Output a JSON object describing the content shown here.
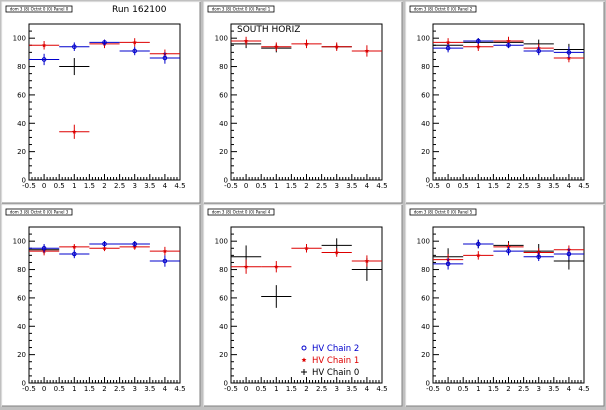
{
  "colors": {
    "HV Chain 0": "#000000",
    "HV Chain 1": "#dd0000",
    "HV Chain 2": "#0000cc"
  },
  "chart_data": [
    {
      "type": "scatter",
      "pad_title": "dom 3 (8) Octnt 0 (0) Panel 0",
      "annotation": "Run 162100",
      "xlim": [
        -0.5,
        4.5
      ],
      "ylim": [
        0,
        110
      ],
      "xticks": [
        "-0.5",
        "0",
        "0.5",
        "1",
        "1.5",
        "2",
        "2.5",
        "3",
        "3.5",
        "4",
        "4.5"
      ],
      "yticks": [
        "0",
        "20",
        "40",
        "60",
        "80",
        "100"
      ],
      "series": [
        {
          "name": "HV Chain 0",
          "x": [
            1
          ],
          "y": [
            80
          ],
          "yerr": [
            6
          ],
          "xerr": 0.5
        },
        {
          "name": "HV Chain 1",
          "x": [
            0,
            1,
            2,
            3,
            4
          ],
          "y": [
            95,
            34,
            96,
            97,
            89
          ],
          "yerr": [
            3,
            5,
            3,
            3,
            3
          ],
          "xerr": 0.5
        },
        {
          "name": "HV Chain 2",
          "x": [
            0,
            1,
            2,
            3,
            4
          ],
          "y": [
            85,
            94,
            97,
            91,
            86
          ],
          "yerr": [
            4,
            3,
            2,
            3,
            4
          ],
          "xerr": 0.5
        }
      ]
    },
    {
      "type": "scatter",
      "pad_title": "dom 3 (8) Octnt 0 (0) Panel 1",
      "annotation": "SOUTH HORIZ",
      "xlim": [
        -0.5,
        4.5
      ],
      "ylim": [
        0,
        110
      ],
      "xticks": [
        "-0.5",
        "0",
        "0.5",
        "1",
        "1.5",
        "2",
        "2.5",
        "3",
        "3.5",
        "4",
        "4.5"
      ],
      "yticks": [
        "0",
        "20",
        "40",
        "60",
        "80",
        "100"
      ],
      "series": [
        {
          "name": "HV Chain 0",
          "x": [
            0,
            1,
            3
          ],
          "y": [
            96,
            93,
            94
          ],
          "yerr": [
            3,
            3,
            2
          ],
          "xerr": 0.5
        },
        {
          "name": "HV Chain 1",
          "x": [
            0,
            1,
            2,
            3,
            4
          ],
          "y": [
            98,
            94,
            96,
            94,
            91
          ],
          "yerr": [
            3,
            3,
            3,
            3,
            4
          ],
          "xerr": 0.5
        }
      ]
    },
    {
      "type": "scatter",
      "pad_title": "dom 3 (8) Octnt 0 (0) Panel 2",
      "annotation": "",
      "xlim": [
        -0.5,
        4.5
      ],
      "ylim": [
        0,
        110
      ],
      "xticks": [
        "-0.5",
        "0",
        "0.5",
        "1",
        "1.5",
        "2",
        "2.5",
        "3",
        "3.5",
        "4",
        "4.5"
      ],
      "yticks": [
        "0",
        "20",
        "40",
        "60",
        "80",
        "100"
      ],
      "series": [
        {
          "name": "HV Chain 0",
          "x": [
            0,
            1,
            2,
            3,
            4
          ],
          "y": [
            95,
            97,
            97,
            96,
            92
          ],
          "yerr": [
            3,
            3,
            3,
            3,
            4
          ],
          "xerr": 0.5
        },
        {
          "name": "HV Chain 1",
          "x": [
            0,
            1,
            2,
            3,
            4
          ],
          "y": [
            97,
            94,
            98,
            93,
            86
          ],
          "yerr": [
            3,
            3,
            3,
            3,
            3
          ],
          "xerr": 0.5
        },
        {
          "name": "HV Chain 2",
          "x": [
            0,
            1,
            2,
            3,
            4
          ],
          "y": [
            93,
            98,
            95,
            91,
            90
          ],
          "yerr": [
            3,
            2,
            2,
            3,
            4
          ],
          "xerr": 0.5
        }
      ]
    },
    {
      "type": "scatter",
      "pad_title": "dom 3 (8) Octnt 0 (0) Panel 3",
      "annotation": "",
      "xlim": [
        -0.5,
        4.5
      ],
      "ylim": [
        0,
        110
      ],
      "xticks": [
        "-0.5",
        "0",
        "0.5",
        "1",
        "1.5",
        "2",
        "2.5",
        "3",
        "3.5",
        "4",
        "4.5"
      ],
      "yticks": [
        "0",
        "20",
        "40",
        "60",
        "80",
        "100"
      ],
      "series": [
        {
          "name": "HV Chain 0",
          "x": [
            0,
            2,
            3
          ],
          "y": [
            94,
            98,
            98
          ],
          "yerr": [
            3,
            2,
            2
          ],
          "xerr": 0.5
        },
        {
          "name": "HV Chain 1",
          "x": [
            0,
            1,
            2,
            3,
            4
          ],
          "y": [
            93,
            96,
            95,
            96,
            93
          ],
          "yerr": [
            3,
            2,
            2,
            2,
            3
          ],
          "xerr": 0.5
        },
        {
          "name": "HV Chain 2",
          "x": [
            0,
            1,
            2,
            3,
            4
          ],
          "y": [
            95,
            91,
            98,
            98,
            86
          ],
          "yerr": [
            3,
            3,
            2,
            2,
            4
          ],
          "xerr": 0.5
        }
      ]
    },
    {
      "type": "scatter",
      "pad_title": "dom 3 (8) Octnt 0 (0) Panel 4",
      "annotation": "",
      "xlim": [
        -0.5,
        4.5
      ],
      "ylim": [
        0,
        110
      ],
      "xticks": [
        "-0.5",
        "0",
        "0.5",
        "1",
        "1.5",
        "2",
        "2.5",
        "3",
        "3.5",
        "4",
        "4.5"
      ],
      "yticks": [
        "0",
        "20",
        "40",
        "60",
        "80",
        "100"
      ],
      "legend": [
        "HV Chain 2",
        "HV Chain 1",
        "HV Chain 0"
      ],
      "legend_position": "bottom-right",
      "series": [
        {
          "name": "HV Chain 0",
          "x": [
            0,
            1,
            3,
            4
          ],
          "y": [
            89,
            61,
            97,
            80
          ],
          "yerr": [
            8,
            8,
            5,
            8
          ],
          "xerr": 0.5
        },
        {
          "name": "HV Chain 1",
          "x": [
            0,
            1,
            2,
            3,
            4
          ],
          "y": [
            82,
            82,
            95,
            92,
            86
          ],
          "yerr": [
            5,
            4,
            3,
            3,
            4
          ],
          "xerr": 0.5
        }
      ]
    },
    {
      "type": "scatter",
      "pad_title": "dom 3 (8) Octnt 0 (0) Panel 5",
      "annotation": "",
      "xlim": [
        -0.5,
        4.5
      ],
      "ylim": [
        0,
        110
      ],
      "xticks": [
        "-0.5",
        "0",
        "0.5",
        "1",
        "1.5",
        "2",
        "2.5",
        "3",
        "3.5",
        "4",
        "4.5"
      ],
      "yticks": [
        "0",
        "20",
        "40",
        "60",
        "80",
        "100"
      ],
      "series": [
        {
          "name": "HV Chain 0",
          "x": [
            0,
            1,
            2,
            3,
            4
          ],
          "y": [
            89,
            98,
            97,
            93,
            86
          ],
          "yerr": [
            6,
            3,
            3,
            5,
            6
          ],
          "xerr": 0.5
        },
        {
          "name": "HV Chain 1",
          "x": [
            0,
            1,
            2,
            3,
            4
          ],
          "y": [
            87,
            90,
            96,
            92,
            94
          ],
          "yerr": [
            4,
            3,
            3,
            3,
            3
          ],
          "xerr": 0.5
        },
        {
          "name": "HV Chain 2",
          "x": [
            0,
            1,
            2,
            3,
            4
          ],
          "y": [
            84,
            98,
            93,
            89,
            91
          ],
          "yerr": [
            4,
            3,
            3,
            3,
            4
          ],
          "xerr": 0.5
        }
      ]
    }
  ]
}
